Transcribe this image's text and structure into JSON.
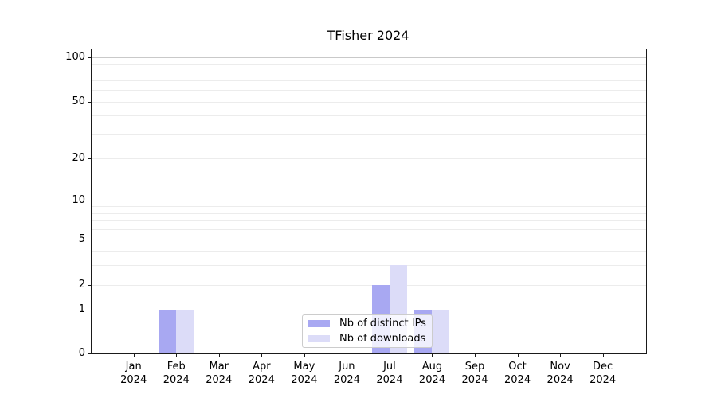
{
  "chart_data": {
    "type": "bar",
    "title": "TFisher 2024",
    "categories": [
      "Jan 2024",
      "Feb 2024",
      "Mar 2024",
      "Apr 2024",
      "May 2024",
      "Jun 2024",
      "Jul 2024",
      "Aug 2024",
      "Sep 2024",
      "Oct 2024",
      "Nov 2024",
      "Dec 2024"
    ],
    "series": [
      {
        "name": "Nb of distinct IPs",
        "color": "#a8a8f2",
        "values": [
          0,
          1,
          0,
          0,
          0,
          0,
          2,
          1,
          0,
          0,
          0,
          0
        ]
      },
      {
        "name": "Nb of downloads",
        "color": "#dcdcf8",
        "values": [
          0,
          1,
          0,
          0,
          0,
          0,
          3,
          1,
          0,
          0,
          0,
          0
        ]
      }
    ],
    "xlabel": "",
    "ylabel": "",
    "yscale": "symlog",
    "yticks": [
      0,
      1,
      2,
      5,
      10,
      20,
      50,
      100
    ],
    "ylim": [
      0,
      114
    ],
    "grid": "horizontal, major and minor",
    "legend_position": "lower center (inside axes)"
  },
  "colors": {
    "grid_major": "#c9c9c9",
    "grid_minor": "#ececec",
    "axis": "#1a1a1a"
  }
}
